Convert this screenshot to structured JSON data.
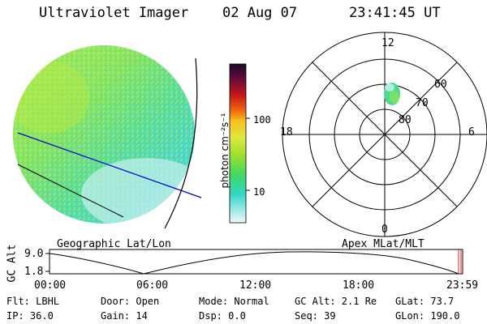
{
  "header": {
    "instrument": "Ultraviolet Imager",
    "date": "02 Aug 07",
    "time": "23:41:45 UT"
  },
  "colorbar": {
    "label": "photon cm⁻²s⁻¹",
    "tick_labels": [
      "100",
      "10"
    ]
  },
  "polar_plot": {
    "mlt_labels": {
      "top": "12",
      "bottom": "0",
      "left": "18",
      "right": "6"
    },
    "mlat_labels": [
      "60",
      "70",
      "80"
    ]
  },
  "panel_labels": {
    "left": "Geographic Lat/Lon",
    "right": "Apex MLat/MLT"
  },
  "altitude_plot": {
    "ylabel": "GC Alt",
    "y_ticks": [
      "9.0",
      "1.8"
    ],
    "x_ticks": [
      "00:00",
      "06:00",
      "12:00",
      "18:00",
      "23:59"
    ]
  },
  "status": {
    "flt": "Flt: LBHL",
    "door": "Door: Open",
    "mode": "Mode: Normal",
    "gc_alt": "GC Alt: 2.1 Re",
    "glat": "GLat:  73.7",
    "ip": "IP: 36.0",
    "gain": "Gain: 14",
    "dsp": "Dsp:    0.0",
    "seq": "Seq: 39",
    "glon": "GLon: 190.0"
  },
  "colors": {
    "earth_main": "#8fe45a",
    "earth_cyan": "#40d8c8",
    "earth_pale": "#b8eeee",
    "coast_line": "#000000",
    "terminator_line": "#0000cc",
    "auroral_patch": "#4fd88e"
  }
}
